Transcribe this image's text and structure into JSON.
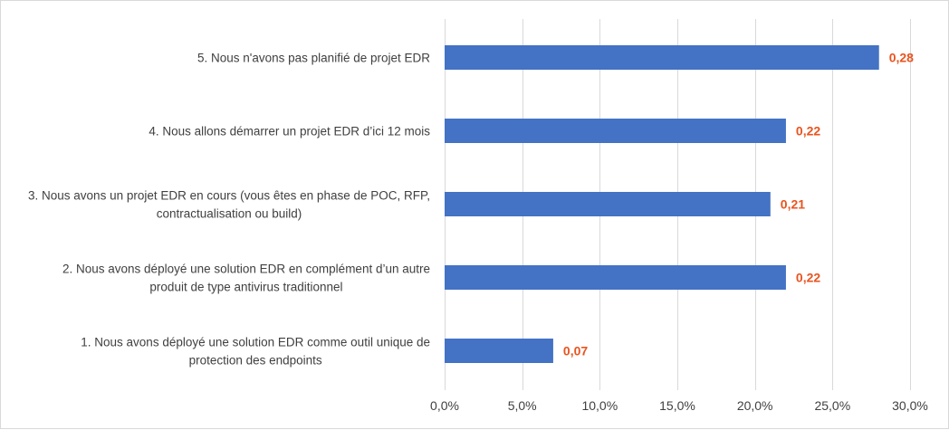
{
  "chart_data": {
    "type": "bar",
    "orientation": "horizontal",
    "title": "",
    "xlabel": "",
    "ylabel": "",
    "categories": [
      [
        "5. Nous n'avons pas planifié de projet EDR"
      ],
      [
        "4. Nous allons démarrer un projet EDR d’ici 12 mois"
      ],
      [
        "3. Nous avons un projet EDR en cours (vous êtes en phase de POC, RFP,",
        "contractualisation ou build)"
      ],
      [
        "2. Nous avons déployé une solution EDR en complément d’un autre",
        "produit de type antivirus traditionnel"
      ],
      [
        "1. Nous avons déployé une solution EDR comme outil unique de",
        "protection des endpoints"
      ]
    ],
    "values": [
      0.28,
      0.22,
      0.21,
      0.22,
      0.07
    ],
    "data_labels": [
      "0,28",
      "0,22",
      "0,21",
      "0,22",
      "0,07"
    ],
    "xlim": [
      0,
      0.3
    ],
    "xticks": [
      0,
      0.05,
      0.1,
      0.15,
      0.2,
      0.25,
      0.3
    ],
    "xtick_labels": [
      "0,0%",
      "5,0%",
      "10,0%",
      "15,0%",
      "20,0%",
      "25,0%",
      "30,0%"
    ],
    "grid": true,
    "legend": "none",
    "colors": {
      "bar": "#4472c4",
      "data_label": "#e8541f",
      "gridline": "#d9d9d9",
      "text": "#404040"
    }
  }
}
